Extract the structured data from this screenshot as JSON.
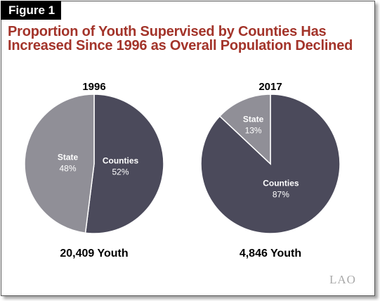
{
  "figure_label": "Figure 1",
  "title_line1": "Proportion of Youth Supervised by Counties Has",
  "title_line2": "Increased Since 1996 as Overall Population Declined",
  "logo": "LAO",
  "colors": {
    "title": "#a3342a",
    "counties": "#4b4a5b",
    "state": "#908f97",
    "label_text": "#ffffff"
  },
  "chart_data": [
    {
      "type": "pie",
      "title": "1996",
      "total": "20,409 Youth",
      "slices": [
        {
          "name": "Counties",
          "value": 52,
          "label": "52%"
        },
        {
          "name": "State",
          "value": 48,
          "label": "48%"
        }
      ]
    },
    {
      "type": "pie",
      "title": "2017",
      "total": "4,846 Youth",
      "slices": [
        {
          "name": "Counties",
          "value": 87,
          "label": "87%"
        },
        {
          "name": "State",
          "value": 13,
          "label": "13%"
        }
      ]
    }
  ]
}
